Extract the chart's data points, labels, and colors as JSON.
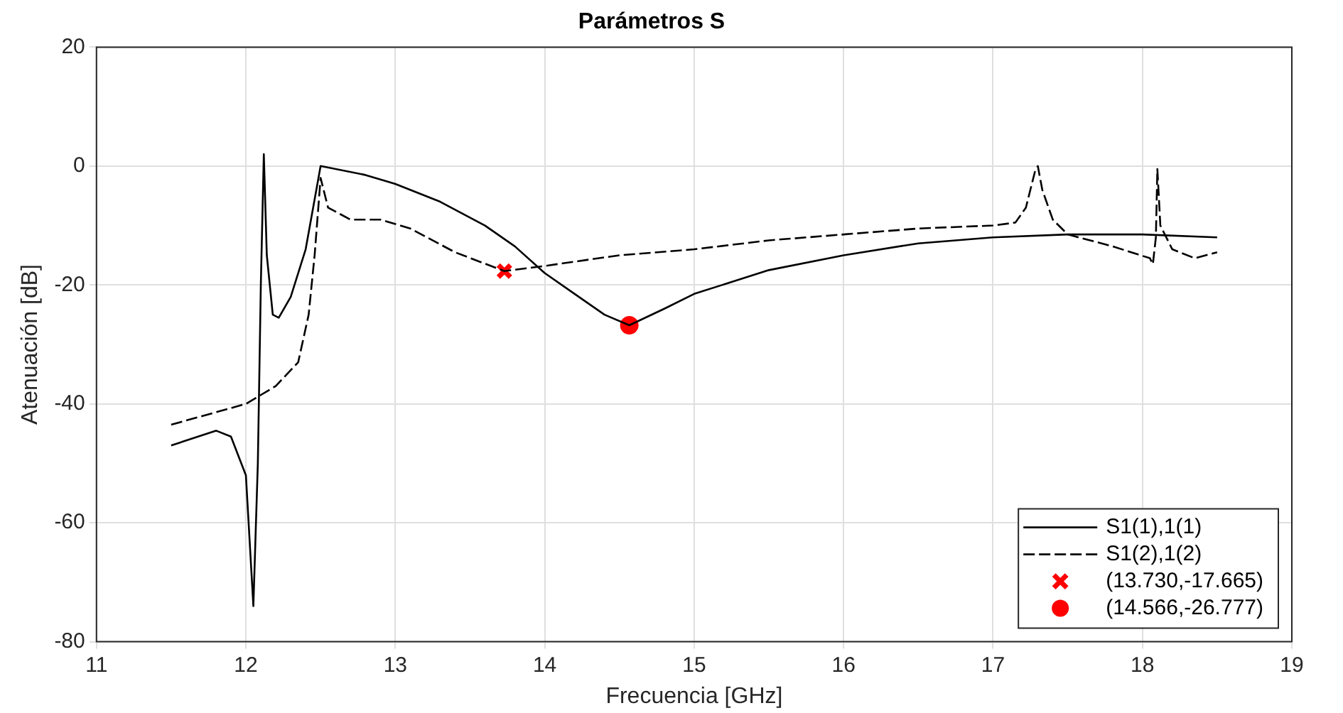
{
  "chart_data": {
    "type": "line",
    "title": "Parámetros S",
    "xlabel": "Frecuencia [GHz]",
    "ylabel": "Atenuación [dB]",
    "xlim": [
      11,
      19
    ],
    "xticks": [
      11,
      12,
      13,
      14,
      15,
      16,
      17,
      18,
      19
    ],
    "ylim": [
      -80,
      20
    ],
    "yticks": [
      -80,
      -60,
      -40,
      -20,
      0,
      20
    ],
    "grid": true,
    "legend": "bottom right",
    "series": [
      {
        "name": "S1(1),1(1)",
        "color": "#000000",
        "line_style": "solid",
        "marker": "none",
        "x": [
          11.5,
          11.8,
          11.9,
          12.0,
          12.05,
          12.08,
          12.1,
          12.12,
          12.14,
          12.18,
          12.22,
          12.3,
          12.4,
          12.45,
          12.5,
          12.8,
          13.0,
          13.3,
          13.6,
          13.8,
          14.0,
          14.2,
          14.4,
          14.566,
          14.8,
          15.0,
          15.5,
          16.0,
          16.5,
          17.0,
          17.5,
          18.0,
          18.5
        ],
        "values": [
          -47,
          -44.5,
          -45.5,
          -52,
          -74,
          -50,
          -20,
          2,
          -15,
          -25,
          -25.5,
          -22,
          -14,
          -7,
          0,
          -1.5,
          -3,
          -6,
          -10,
          -13.5,
          -18,
          -21.5,
          -25,
          -26.777,
          -24,
          -21.5,
          -17.5,
          -15,
          -13,
          -12,
          -11.5,
          -11.5,
          -12
        ]
      },
      {
        "name": "S1(2),1(2)",
        "color": "#000000",
        "line_style": "dashed",
        "marker": "none",
        "x": [
          11.5,
          12.0,
          12.2,
          12.35,
          12.42,
          12.46,
          12.5,
          12.55,
          12.7,
          12.9,
          13.1,
          13.4,
          13.73,
          14.0,
          14.5,
          15.0,
          15.5,
          16.0,
          16.5,
          17.0,
          17.15,
          17.22,
          17.28,
          17.3,
          17.33,
          17.4,
          17.5,
          17.8,
          18.05,
          18.07,
          18.09,
          18.1,
          18.12,
          18.2,
          18.35,
          18.5
        ],
        "values": [
          -43.5,
          -40,
          -37,
          -33,
          -25,
          -15,
          -2,
          -7,
          -9,
          -9,
          -10.5,
          -14.5,
          -17.665,
          -16.8,
          -15,
          -14,
          -12.5,
          -11.5,
          -10.5,
          -10,
          -9.5,
          -7,
          -1,
          0,
          -4,
          -9,
          -11.5,
          -13.5,
          -15.5,
          -16.5,
          -12,
          -0.5,
          -10,
          -14,
          -15.5,
          -14.5
        ]
      },
      {
        "name": "(13.730,-17.665)",
        "type": "scatter",
        "color": "#ff0000",
        "marker": "cross",
        "x": [
          13.73
        ],
        "values": [
          -17.665
        ]
      },
      {
        "name": "(14.566,-26.777)",
        "type": "scatter",
        "color": "#ff0000",
        "marker": "circle",
        "x": [
          14.566
        ],
        "values": [
          -26.777
        ]
      }
    ]
  }
}
